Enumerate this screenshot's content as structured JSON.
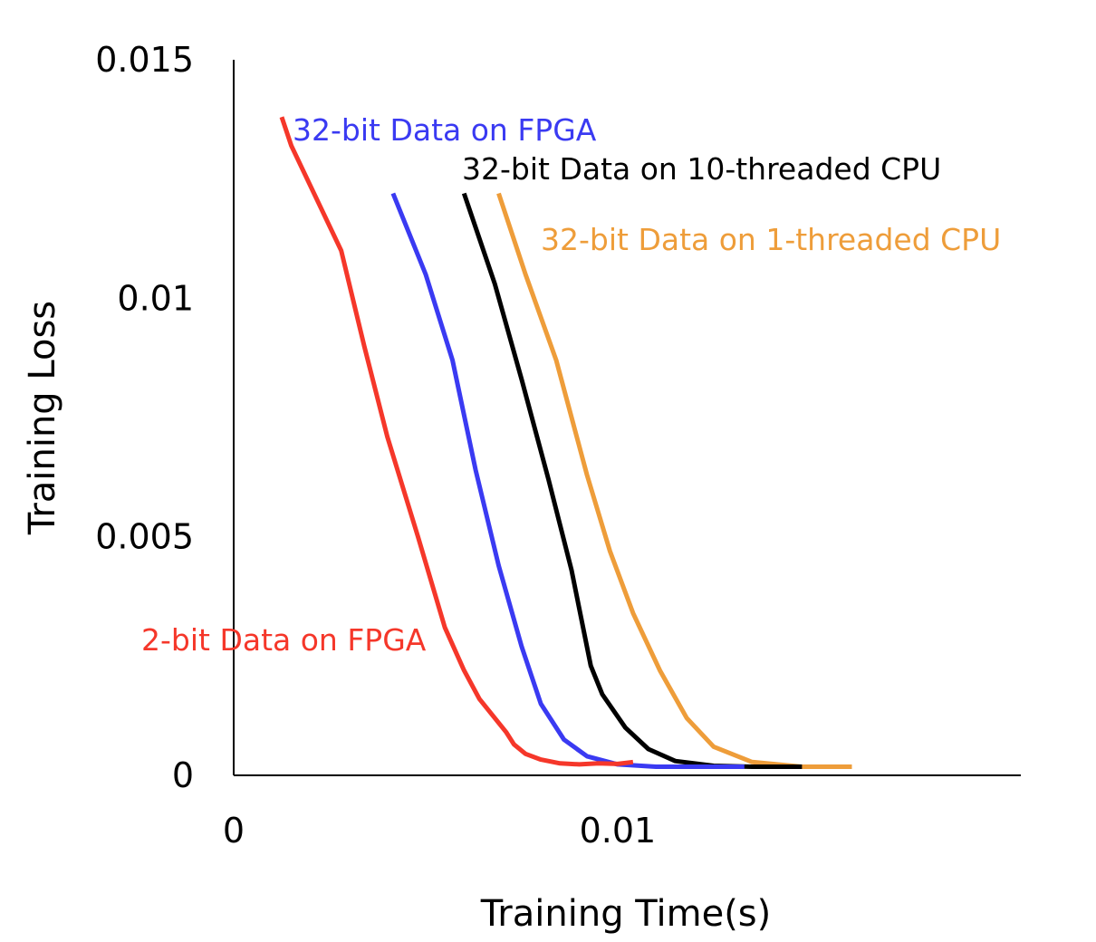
{
  "chart_data": {
    "type": "line",
    "title": "",
    "xlabel": "Training Time(s)",
    "ylabel": "Training Loss",
    "xlim": [
      0,
      0.0205
    ],
    "ylim": [
      0,
      0.015
    ],
    "x_ticks": [
      {
        "value": 0,
        "label": "0"
      },
      {
        "value": 0.01,
        "label": "0.01"
      }
    ],
    "y_ticks": [
      {
        "value": 0,
        "label": "0"
      },
      {
        "value": 0.005,
        "label": "0.005"
      },
      {
        "value": 0.01,
        "label": "0.01"
      },
      {
        "value": 0.015,
        "label": "0.015"
      }
    ],
    "grid": false,
    "legend": "inline labels",
    "series": [
      {
        "name": "2-bit Data on FPGA",
        "color": "#f5372a",
        "x": [
          0.00125,
          0.0015,
          0.0028,
          0.0034,
          0.004,
          0.0048,
          0.0055,
          0.006,
          0.0064,
          0.0068,
          0.0071,
          0.0073,
          0.0076,
          0.008,
          0.0085,
          0.009,
          0.0095,
          0.01,
          0.0104
        ],
        "y": [
          0.0138,
          0.0132,
          0.011,
          0.009,
          0.0071,
          0.005,
          0.0031,
          0.0022,
          0.0016,
          0.0012,
          0.0009,
          0.00065,
          0.00045,
          0.00033,
          0.00025,
          0.00023,
          0.00025,
          0.00024,
          0.00028
        ]
      },
      {
        "name": "32-bit Data on FPGA",
        "color": "#3a3af2",
        "x": [
          0.00415,
          0.005,
          0.0057,
          0.0063,
          0.0069,
          0.0075,
          0.008,
          0.0086,
          0.0092,
          0.01,
          0.011,
          0.012,
          0.0133
        ],
        "y": [
          0.0122,
          0.0105,
          0.0087,
          0.0064,
          0.0044,
          0.0027,
          0.0015,
          0.00075,
          0.0004,
          0.00023,
          0.00018,
          0.00018,
          0.00018
        ]
      },
      {
        "name": "32-bit Data on 10-threaded CPU",
        "color": "#000000",
        "x": [
          0.006,
          0.0068,
          0.0075,
          0.0082,
          0.0088,
          0.0093,
          0.0096,
          0.0102,
          0.0108,
          0.0115,
          0.0125,
          0.0135,
          0.0148
        ],
        "y": [
          0.0122,
          0.0103,
          0.0083,
          0.0062,
          0.0043,
          0.0023,
          0.0017,
          0.001,
          0.00055,
          0.0003,
          0.0002,
          0.00018,
          0.00018
        ]
      },
      {
        "name": "32-bit Data on 1-threaded CPU",
        "color": "#ee9d3a",
        "x": [
          0.0069,
          0.0076,
          0.0084,
          0.0092,
          0.0098,
          0.0104,
          0.0111,
          0.0118,
          0.0125,
          0.0135,
          0.0148,
          0.0161
        ],
        "y": [
          0.0122,
          0.0105,
          0.0087,
          0.0063,
          0.0047,
          0.0034,
          0.0022,
          0.0012,
          0.0006,
          0.00028,
          0.00018,
          0.00018
        ]
      }
    ]
  }
}
